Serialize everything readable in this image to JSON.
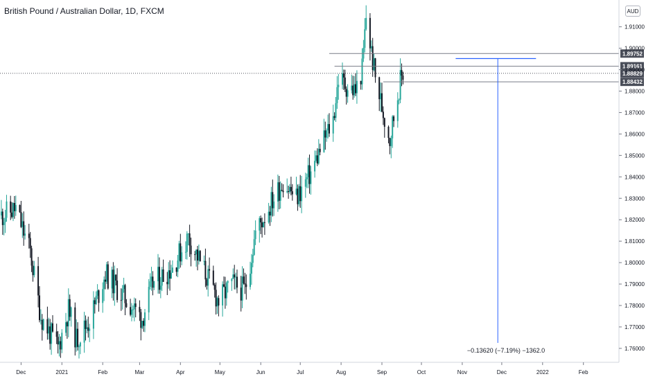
{
  "header": {
    "symbol_title": "British Pound / Australian Dollar, 1D, FXCM",
    "currency": "AUD"
  },
  "colors": {
    "up": "#26a69a",
    "down": "#131722",
    "line": "#787b86",
    "measure": "#2962ff",
    "tag_bg": "#4a4e59"
  },
  "chart_data": {
    "type": "candlestick",
    "title": "British Pound / Australian Dollar, 1D, FXCM",
    "ylim": [
      1.7535,
      1.9225
    ],
    "y_ticks": [
      1.76,
      1.77,
      1.78,
      1.79,
      1.8,
      1.81,
      1.82,
      1.83,
      1.84,
      1.85,
      1.86,
      1.87,
      1.88,
      1.89,
      1.9,
      1.91
    ],
    "y_tick_labels": [
      "1.76000",
      "1.77000",
      "1.78000",
      "1.79000",
      "1.80000",
      "1.81000",
      "1.82000",
      "1.83000",
      "1.84000",
      "1.85000",
      "1.86000",
      "1.87000",
      "1.88000",
      "1.89000",
      "1.90000",
      "1.91000"
    ],
    "x_tick_labels": [
      "Dec",
      "2021",
      "Feb",
      "Mar",
      "Apr",
      "May",
      "Jun",
      "Jul",
      "Aug",
      "Sep",
      "Oct",
      "Nov",
      "Dec",
      "2022",
      "Feb"
    ],
    "x_tick_dates": [
      "2020-12-01",
      "2021-01-01",
      "2021-02-01",
      "2021-03-01",
      "2021-04-01",
      "2021-05-01",
      "2021-06-01",
      "2021-07-01",
      "2021-08-01",
      "2021-09-01",
      "2021-10-01",
      "2021-11-01",
      "2021-12-01",
      "2022-01-01",
      "2022-02-01"
    ],
    "x_range": [
      "2020-11-15",
      "2022-02-28"
    ],
    "candle_range": [
      "2020-11-16",
      "2021-09-17"
    ],
    "close_trajectory": [
      [
        "2020-11-16",
        1.822
      ],
      [
        "2020-11-27",
        1.825
      ],
      [
        "2020-12-08",
        1.805
      ],
      [
        "2020-12-16",
        1.775
      ],
      [
        "2020-12-29",
        1.76
      ],
      [
        "2021-01-06",
        1.778
      ],
      [
        "2021-01-12",
        1.764
      ],
      [
        "2021-01-22",
        1.773
      ],
      [
        "2021-02-03",
        1.795
      ],
      [
        "2021-02-17",
        1.784
      ],
      [
        "2021-03-03",
        1.774
      ],
      [
        "2021-03-11",
        1.79
      ],
      [
        "2021-03-26",
        1.798
      ],
      [
        "2021-04-07",
        1.812
      ],
      [
        "2021-04-20",
        1.795
      ],
      [
        "2021-04-30",
        1.782
      ],
      [
        "2021-05-10",
        1.79
      ],
      [
        "2021-05-20",
        1.787
      ],
      [
        "2021-05-28",
        1.814
      ],
      [
        "2021-06-09",
        1.828
      ],
      [
        "2021-06-18",
        1.838
      ],
      [
        "2021-06-28",
        1.83
      ],
      [
        "2021-07-09",
        1.842
      ],
      [
        "2021-07-19",
        1.857
      ],
      [
        "2021-07-26",
        1.867
      ],
      [
        "2021-07-30",
        1.886
      ],
      [
        "2021-08-06",
        1.882
      ],
      [
        "2021-08-12",
        1.88
      ],
      [
        "2021-08-17",
        1.89
      ],
      [
        "2021-08-20",
        1.915
      ],
      [
        "2021-08-24",
        1.898
      ],
      [
        "2021-08-27",
        1.886
      ],
      [
        "2021-09-02",
        1.87
      ],
      [
        "2021-09-07",
        1.858
      ],
      [
        "2021-09-10",
        1.868
      ],
      [
        "2021-09-14",
        1.882
      ],
      [
        "2021-09-17",
        1.889
      ]
    ],
    "horizontal_levels": [
      {
        "value": 1.89752,
        "label": "1.89752",
        "start": "2021-07-23"
      },
      {
        "value": 1.89161,
        "label": "1.89161",
        "start": "2021-07-27"
      },
      {
        "value": 1.88829,
        "label": "1.88829",
        "start": "2020-11-15",
        "style": "dotted"
      },
      {
        "value": 1.88432,
        "label": "1.88432",
        "start": "2021-09-02"
      }
    ],
    "measure": {
      "top_value": 1.8952,
      "bottom_value": 1.759,
      "x_start": "2021-10-27",
      "x_end": "2021-12-27",
      "x_center": "2021-11-28",
      "label": "−0.13620 (−7.19%) −1362.0"
    }
  }
}
